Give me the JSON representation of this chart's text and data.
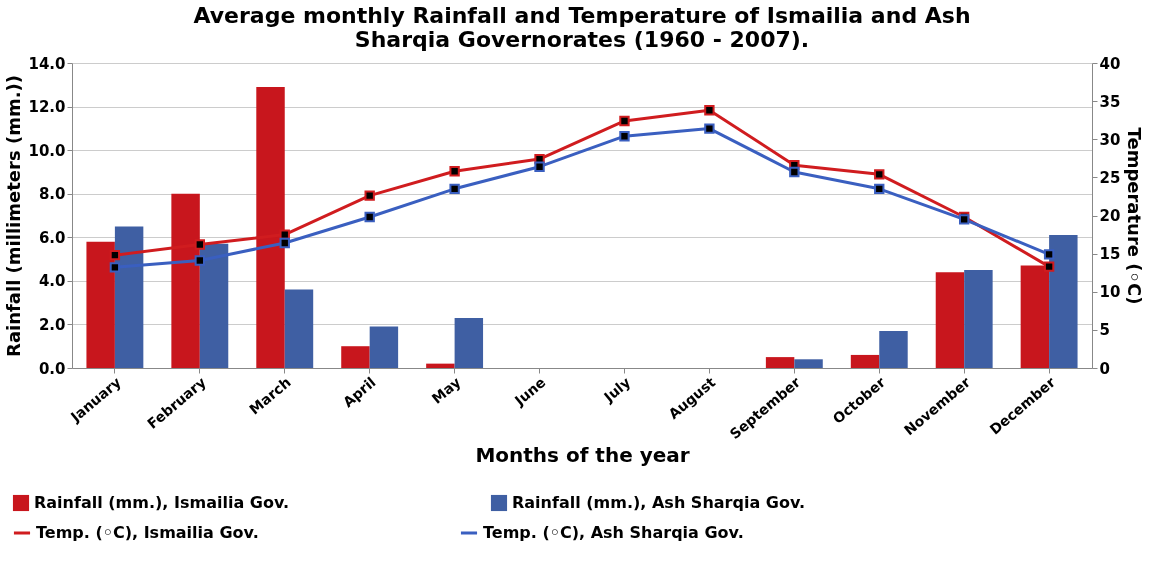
{
  "chart_data": {
    "type": "bar",
    "title": "Average monthly Rainfall and Temperature of Ismailia and Ash Sharqia Governorates (1960 - 2007).",
    "xlabel": "Months of the year",
    "ylabel": "Rainfall (millimeters (mm.))",
    "y2label": "Temperature (◦C)",
    "categories": [
      "January",
      "February",
      "March",
      "April",
      "May",
      "June",
      "July",
      "August",
      "September",
      "October",
      "November",
      "December"
    ],
    "series": [
      {
        "name": "Rainfall (mm.), Ismailia Gov.",
        "color": "#c8161d",
        "values": [
          5.8,
          8.0,
          12.9,
          1.0,
          0.2,
          0,
          0,
          0,
          0.5,
          0.6,
          4.4,
          4.7
        ]
      },
      {
        "name": "Rainfall (mm.), Ash Sharqia Gov.",
        "color": "#3f5fa3",
        "values": [
          6.5,
          5.7,
          3.6,
          1.9,
          2.3,
          0,
          0,
          0,
          0.4,
          1.7,
          4.5,
          6.1
        ]
      },
      {
        "name": "Temp. (◦C), Ismailia Gov.",
        "type": "line",
        "axis": "y2",
        "color": "#d01c1f",
        "values": [
          14.8,
          16.2,
          17.5,
          22.6,
          25.8,
          27.4,
          32.4,
          33.8,
          26.6,
          25.4,
          19.8,
          13.3
        ]
      },
      {
        "name": "Temp. (◦C), Ash Sharqia Gov.",
        "type": "line",
        "axis": "y2",
        "color": "#3a5fc0",
        "values": [
          13.2,
          14.1,
          16.4,
          19.8,
          23.5,
          26.4,
          30.4,
          31.4,
          25.7,
          23.5,
          19.5,
          14.9
        ]
      }
    ],
    "ylim": [
      0,
      14
    ],
    "yticks": [
      {
        "value": 0,
        "label": "0.0"
      },
      {
        "value": 2,
        "label": "2.0"
      },
      {
        "value": 4,
        "label": "4.0"
      },
      {
        "value": 6,
        "label": "6.0"
      },
      {
        "value": 8,
        "label": "8.0"
      },
      {
        "value": 10,
        "label": "10.0"
      },
      {
        "value": 12,
        "label": "12.0"
      },
      {
        "value": 14,
        "label": "14.0"
      }
    ],
    "y2lim": [
      0,
      40
    ],
    "y2ticks": [
      0,
      5,
      10,
      15,
      20,
      25,
      30,
      35,
      40
    ],
    "grid": "y",
    "legend": "bottom",
    "marker": "square",
    "line_style": "solid"
  }
}
